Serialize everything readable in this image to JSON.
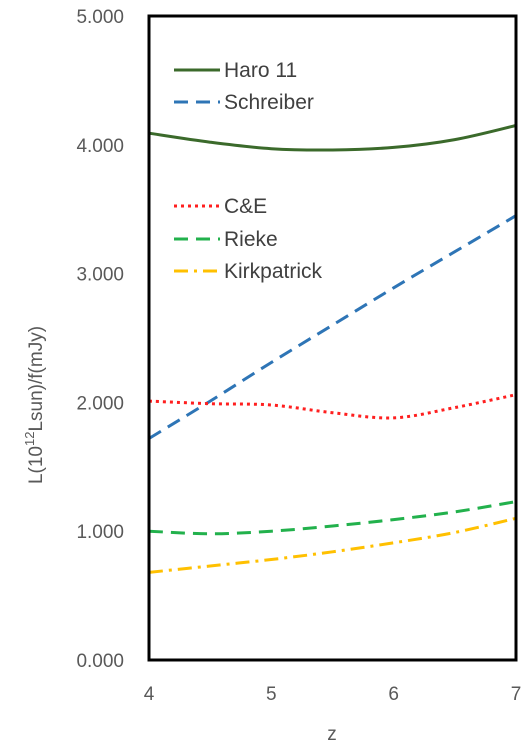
{
  "chart_data": {
    "type": "line",
    "title": "",
    "xlabel": "z",
    "ylabel_parts": {
      "prefix": "L(10",
      "superscript": "12",
      "suffix": "Lsun)/f(mJy)"
    },
    "xlim": [
      4,
      7
    ],
    "ylim": [
      0,
      5
    ],
    "x_ticks": [
      4,
      5,
      6,
      7
    ],
    "y_ticks": [
      0,
      1,
      2,
      3,
      4,
      5
    ],
    "x_tick_labels": [
      "4",
      "5",
      "6",
      "7"
    ],
    "y_tick_labels": [
      "0.000",
      "1.000",
      "2.000",
      "3.000",
      "4.000",
      "5.000"
    ],
    "grid": false,
    "legend_position": "inside-left",
    "series": [
      {
        "name": "Haro 11",
        "color": "#3b6a2b",
        "style": "solid",
        "x": [
          4,
          4.5,
          5,
          5.5,
          6,
          6.5,
          7
        ],
        "y": [
          4.09,
          4.02,
          3.97,
          3.96,
          3.98,
          4.04,
          4.15
        ]
      },
      {
        "name": "Schreiber",
        "color": "#2e75b6",
        "style": "dashed",
        "x": [
          4,
          4.5,
          5,
          5.5,
          6,
          6.5,
          7
        ],
        "y": [
          1.72,
          2.01,
          2.31,
          2.6,
          2.89,
          3.17,
          3.45
        ]
      },
      {
        "name": "C&E",
        "color": "#ff1f1f",
        "style": "dotted",
        "x": [
          4,
          4.5,
          5,
          5.5,
          6,
          6.5,
          7
        ],
        "y": [
          2.01,
          1.99,
          1.98,
          1.92,
          1.88,
          1.96,
          2.06
        ]
      },
      {
        "name": "Rieke",
        "color": "#22b14c",
        "style": "dashed",
        "x": [
          4,
          4.5,
          5,
          5.5,
          6,
          6.5,
          7
        ],
        "y": [
          1.0,
          0.98,
          1.0,
          1.04,
          1.09,
          1.15,
          1.23
        ]
      },
      {
        "name": "Kirkpatrick",
        "color": "#ffc000",
        "style": "dashdot",
        "x": [
          4,
          4.5,
          5,
          5.5,
          6,
          6.5,
          7
        ],
        "y": [
          0.68,
          0.73,
          0.78,
          0.84,
          0.91,
          0.99,
          1.1
        ]
      }
    ]
  }
}
